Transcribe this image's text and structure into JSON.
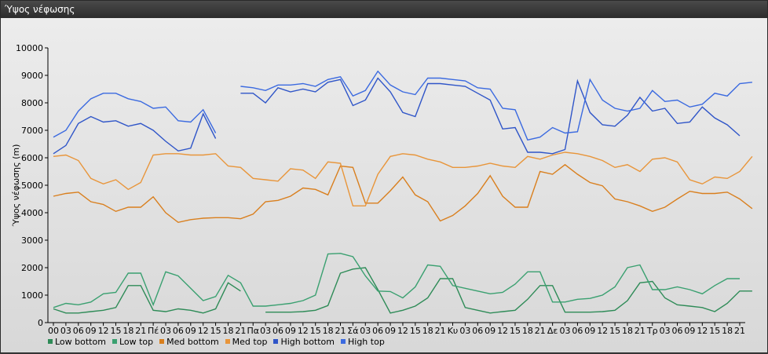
{
  "window": {
    "title": "Ύψος νέφωσης"
  },
  "chart_data": {
    "type": "line",
    "ylabel": "Ύψος νέφωσης (m)",
    "ylim": [
      0,
      10000
    ],
    "yticks": [
      0,
      1000,
      2000,
      3000,
      4000,
      5000,
      6000,
      7000,
      8000,
      9000,
      10000
    ],
    "grid": false,
    "legend_position": "bottom-left",
    "x_labels": [
      "00",
      "03",
      "06",
      "09",
      "12",
      "15",
      "18",
      "21",
      "Πέ",
      "03",
      "06",
      "09",
      "12",
      "15",
      "18",
      "21",
      "Πα",
      "03",
      "06",
      "09",
      "12",
      "15",
      "18",
      "21",
      "Σά",
      "03",
      "06",
      "09",
      "12",
      "15",
      "18",
      "21",
      "Κυ",
      "03",
      "06",
      "09",
      "12",
      "15",
      "18",
      "21",
      "Δε",
      "03",
      "06",
      "09",
      "12",
      "15",
      "18",
      "21",
      "Τρ",
      "03",
      "06",
      "09",
      "12",
      "15",
      "18",
      "21"
    ],
    "series": [
      {
        "name": "Low bottom",
        "color": "#2e8b57",
        "values": [
          500,
          350,
          350,
          400,
          450,
          550,
          1350,
          1350,
          450,
          400,
          500,
          450,
          350,
          500,
          1450,
          1150,
          null,
          380,
          380,
          380,
          400,
          450,
          620,
          1800,
          1950,
          2000,
          1200,
          350,
          450,
          600,
          900,
          1600,
          1600,
          550,
          450,
          350,
          400,
          450,
          850,
          1350,
          1350,
          380,
          380,
          380,
          400,
          450,
          800,
          1450,
          1500,
          900,
          650,
          600,
          550,
          400,
          700,
          1150,
          1150
        ]
      },
      {
        "name": "Low top",
        "color": "#3aa070",
        "values": [
          550,
          700,
          650,
          750,
          1050,
          1100,
          1800,
          1800,
          650,
          1850,
          1700,
          1250,
          800,
          950,
          1720,
          1450,
          600,
          600,
          650,
          700,
          800,
          1000,
          2500,
          2520,
          2400,
          1700,
          1150,
          1130,
          900,
          1300,
          2100,
          2050,
          1350,
          1250,
          1150,
          1050,
          1100,
          1400,
          1850,
          1850,
          750,
          750,
          850,
          880,
          1000,
          1300,
          2000,
          2100,
          1200,
          1200,
          1300,
          1200,
          1050,
          1350,
          1600,
          1600,
          null
        ]
      },
      {
        "name": "Med bottom",
        "color": "#d97f1e",
        "values": [
          4600,
          4700,
          4750,
          4400,
          4300,
          4050,
          4200,
          4200,
          4580,
          4000,
          3650,
          3750,
          3800,
          3820,
          3820,
          3780,
          3950,
          4400,
          4450,
          4600,
          4900,
          4850,
          4650,
          5700,
          5650,
          4350,
          4350,
          4800,
          5300,
          4650,
          4400,
          3700,
          3900,
          4250,
          4700,
          5350,
          4600,
          4200,
          4200,
          5500,
          5400,
          5750,
          5400,
          5100,
          4980,
          4500,
          4400,
          4250,
          4050,
          4200,
          4500,
          4780,
          4700,
          4700,
          4750,
          4500,
          4150
        ]
      },
      {
        "name": "Med top",
        "color": "#e8953a",
        "values": [
          6050,
          6100,
          5900,
          5250,
          5050,
          5200,
          4850,
          5100,
          6100,
          6150,
          6150,
          6100,
          6100,
          6150,
          5700,
          5650,
          5250,
          5200,
          5150,
          5600,
          5550,
          5250,
          5850,
          5800,
          4250,
          4250,
          5400,
          6050,
          6150,
          6100,
          5950,
          5850,
          5650,
          5650,
          5700,
          5800,
          5700,
          5650,
          6050,
          5950,
          6100,
          6200,
          6150,
          6050,
          5900,
          5650,
          5750,
          5500,
          5950,
          6000,
          5850,
          5200,
          5050,
          5300,
          5250,
          5500,
          6050
        ]
      },
      {
        "name": "High bottom",
        "color": "#2f55c8",
        "values": [
          6150,
          6450,
          7250,
          7500,
          7300,
          7350,
          7150,
          7250,
          7000,
          6600,
          6250,
          6350,
          7600,
          6700,
          null,
          8350,
          8350,
          8000,
          8550,
          8400,
          8500,
          8400,
          8750,
          8850,
          7900,
          8100,
          8900,
          8400,
          7650,
          7500,
          8700,
          8700,
          8650,
          8600,
          8350,
          8100,
          7050,
          7100,
          6200,
          6200,
          6150,
          6300,
          8800,
          7650,
          7200,
          7150,
          7550,
          8200,
          7700,
          7800,
          7250,
          7300,
          7850,
          7450,
          7200,
          6800,
          null
        ]
      },
      {
        "name": "High top",
        "color": "#3b6ae0",
        "values": [
          6750,
          7000,
          7700,
          8150,
          8350,
          8350,
          8150,
          8050,
          7800,
          7850,
          7350,
          7300,
          7750,
          6900,
          null,
          8600,
          8550,
          8450,
          8650,
          8650,
          8700,
          8600,
          8850,
          8950,
          8250,
          8450,
          9150,
          8650,
          8400,
          8300,
          8900,
          8900,
          8850,
          8800,
          8550,
          8500,
          7800,
          7750,
          6650,
          6750,
          7100,
          6900,
          6950,
          8850,
          8100,
          7800,
          7700,
          7800,
          8450,
          8050,
          8100,
          7850,
          7950,
          8350,
          8250,
          8700,
          8750
        ]
      }
    ]
  }
}
